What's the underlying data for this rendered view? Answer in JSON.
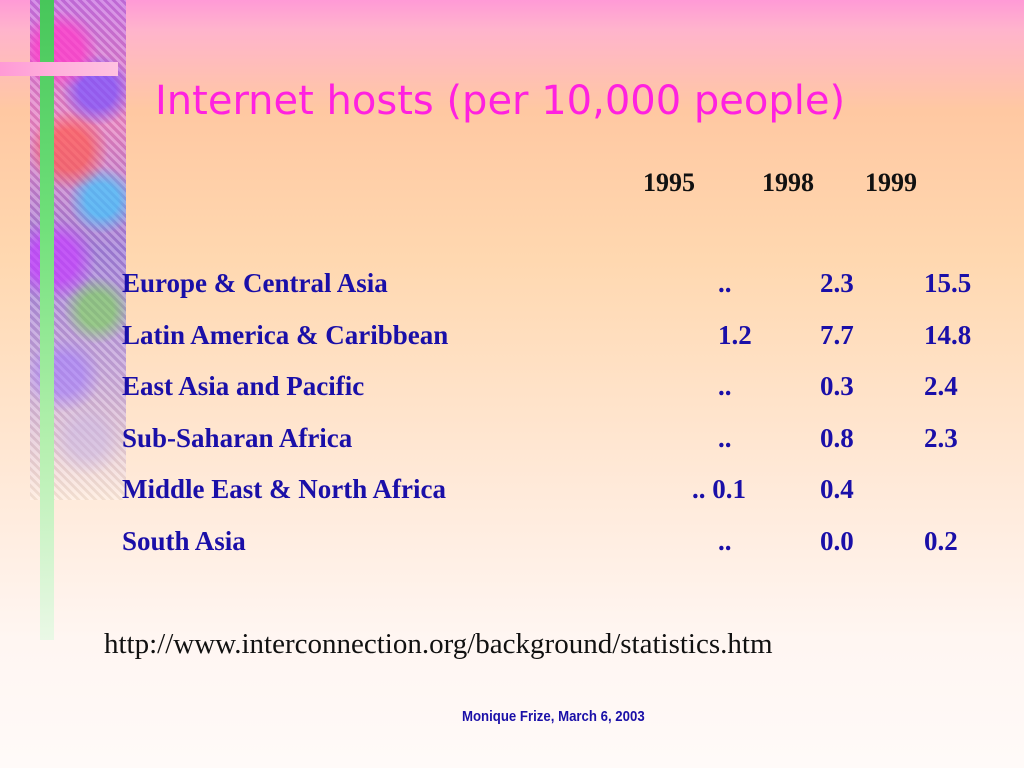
{
  "slide": {
    "title": "Internet hosts (per 10,000 people)",
    "year_headers": [
      "1995",
      "1998",
      "1999"
    ],
    "rows": [
      {
        "region": "Europe & Central Asia",
        "y1995": "..",
        "y1998": "2.3",
        "y1999": "15.5"
      },
      {
        "region": "Latin America & Caribbean",
        "y1995": "1.2",
        "y1998": "7.7",
        "y1999": "14.8"
      },
      {
        "region": "East Asia and Pacific",
        "y1995": "..",
        "y1998": "0.3",
        "y1999": "2.4"
      },
      {
        "region": "Sub-Saharan Africa",
        "y1995": "..",
        "y1998": "0.8",
        "y1999": "2.3"
      },
      {
        "region": "Middle East & North Africa",
        "y1995": ".. 0.1",
        "y1998": "0.4",
        "y1999": ""
      },
      {
        "region": "South Asia",
        "y1995": "..",
        "y1998": "0.0",
        "y1999": "0.2"
      }
    ],
    "source_url": "http://www.interconnection.org/background/statistics.htm",
    "footer": "Monique Frize, March 6, 2003"
  },
  "colors": {
    "title": "#ff21e0",
    "table_text": "#1a0fa8",
    "header_text": "#111111",
    "accent_green": "#47c65a",
    "accent_pink": "#ff9ad6"
  }
}
